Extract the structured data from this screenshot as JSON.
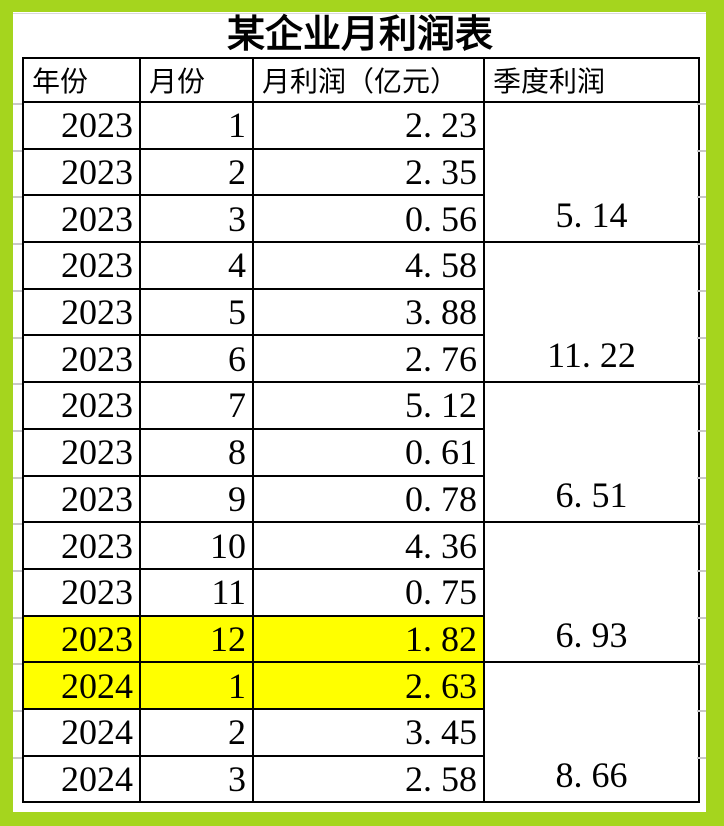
{
  "title": "某企业月利润表",
  "table": {
    "headers": [
      "年份",
      "月份",
      "月利润（亿元）",
      "季度利润"
    ],
    "rows": [
      {
        "year": "2023",
        "month": "1",
        "profit": "2. 23",
        "highlight": false
      },
      {
        "year": "2023",
        "month": "2",
        "profit": "2. 35",
        "highlight": false
      },
      {
        "year": "2023",
        "month": "3",
        "profit": "0. 56",
        "highlight": false
      },
      {
        "year": "2023",
        "month": "4",
        "profit": "4. 58",
        "highlight": false
      },
      {
        "year": "2023",
        "month": "5",
        "profit": "3. 88",
        "highlight": false
      },
      {
        "year": "2023",
        "month": "6",
        "profit": "2. 76",
        "highlight": false
      },
      {
        "year": "2023",
        "month": "7",
        "profit": "5. 12",
        "highlight": false
      },
      {
        "year": "2023",
        "month": "8",
        "profit": "0. 61",
        "highlight": false
      },
      {
        "year": "2023",
        "month": "9",
        "profit": "0. 78",
        "highlight": false
      },
      {
        "year": "2023",
        "month": "10",
        "profit": "4. 36",
        "highlight": false
      },
      {
        "year": "2023",
        "month": "11",
        "profit": "0. 75",
        "highlight": false
      },
      {
        "year": "2023",
        "month": "12",
        "profit": "1. 82",
        "highlight": true
      },
      {
        "year": "2024",
        "month": "1",
        "profit": "2. 63",
        "highlight": true
      },
      {
        "year": "2024",
        "month": "2",
        "profit": "3. 45",
        "highlight": false
      },
      {
        "year": "2024",
        "month": "3",
        "profit": "2. 58",
        "highlight": false
      }
    ],
    "quarters": [
      {
        "value": "5. 14"
      },
      {
        "value": "11. 22"
      },
      {
        "value": "6. 51"
      },
      {
        "value": "6. 93"
      },
      {
        "value": "8. 66"
      }
    ]
  },
  "colors": {
    "frame": "#A5D51E",
    "highlight": "#FFFF00",
    "border": "#000000",
    "gridline": "#C9C9C9"
  }
}
